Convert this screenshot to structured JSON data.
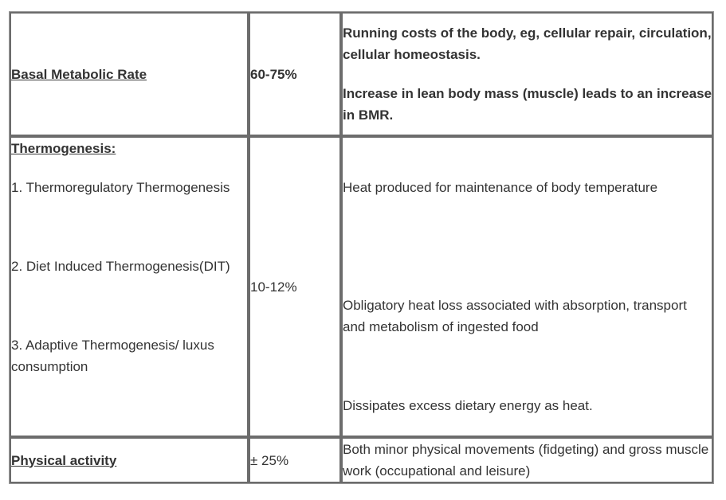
{
  "rows": [
    {
      "component": "Basal Metabolic Rate",
      "percent": "60-75%",
      "description": [
        "Running costs of the body, eg, cellular repair, circulation, cellular homeostasis.",
        "Increase in lean body mass (muscle) leads to an increase in BMR."
      ]
    },
    {
      "component": "Thermogenesis:",
      "subitems": [
        "1. Thermoregulatory Thermogenesis",
        "2. Diet Induced Thermogenesis(DIT)",
        "3. Adaptive Thermogenesis/ luxus consumption"
      ],
      "percent": "10-12%",
      "description": [
        "Heat produced for maintenance of body temperature",
        "Obligatory heat loss associated with absorption, transport and metabolism of ingested food",
        "Dissipates excess dietary energy as heat."
      ]
    },
    {
      "component": "Physical activity",
      "percent": "± 25%",
      "description": [
        "Both minor physical movements (fidgeting) and gross muscle work (occupational and leisure)"
      ]
    }
  ]
}
